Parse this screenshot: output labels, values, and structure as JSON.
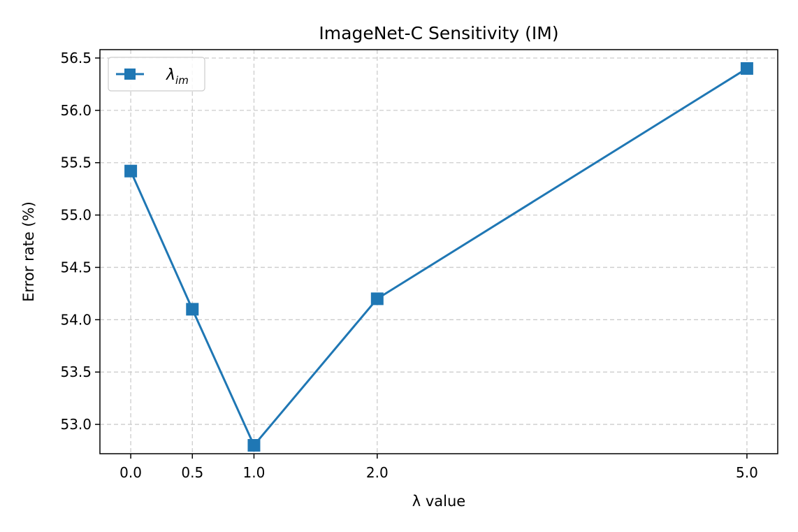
{
  "chart_data": {
    "type": "line",
    "title": "ImageNet-C Sensitivity (IM)",
    "xlabel": "λ value",
    "ylabel": "Error rate (%)",
    "x": [
      0.0,
      0.5,
      1.0,
      2.0,
      5.0
    ],
    "x_tick_labels": [
      "0.0",
      "0.5",
      "1.0",
      "2.0",
      "5.0"
    ],
    "y_ticks": [
      53.0,
      53.5,
      54.0,
      54.5,
      55.0,
      55.5,
      56.0,
      56.5
    ],
    "y_tick_labels": [
      "53.0",
      "53.5",
      "54.0",
      "54.5",
      "55.0",
      "55.5",
      "56.0",
      "56.5"
    ],
    "xlim": [
      -0.25,
      5.25
    ],
    "ylim": [
      52.72,
      56.58
    ],
    "grid": true,
    "legend_position": "top-left",
    "series": [
      {
        "name": "λim",
        "legend_main": "λ",
        "legend_sub": "im",
        "color": "#1f77b4",
        "marker": "square",
        "values": [
          55.42,
          54.1,
          52.8,
          54.2,
          56.4
        ]
      }
    ]
  }
}
